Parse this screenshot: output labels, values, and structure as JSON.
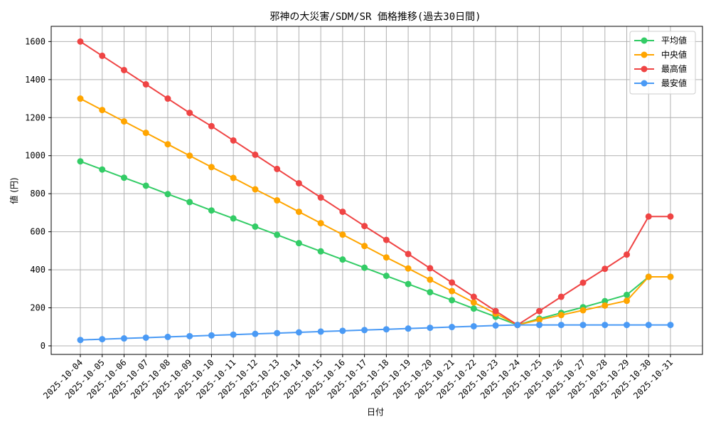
{
  "chart_data": {
    "type": "line",
    "title": "邪神の大災害/SDM/SR 価格推移(過去30日間)",
    "xlabel": "日付",
    "ylabel": "値 (円)",
    "ylim": [
      -45,
      1680
    ],
    "yticks": [
      0,
      200,
      400,
      600,
      800,
      1000,
      1200,
      1400,
      1600
    ],
    "grid": true,
    "legend_position": "top-right",
    "categories": [
      "2025-10-04",
      "2025-10-05",
      "2025-10-06",
      "2025-10-07",
      "2025-10-08",
      "2025-10-09",
      "2025-10-10",
      "2025-10-11",
      "2025-10-12",
      "2025-10-13",
      "2025-10-14",
      "2025-10-15",
      "2025-10-16",
      "2025-10-17",
      "2025-10-18",
      "2025-10-19",
      "2025-10-20",
      "2025-10-21",
      "2025-10-22",
      "2025-10-23",
      "2025-10-24",
      "2025-10-25",
      "2025-10-26",
      "2025-10-27",
      "2025-10-28",
      "2025-10-29",
      "2025-10-30",
      "2025-10-31"
    ],
    "series": [
      {
        "name": "平均値",
        "color": "#33cc66",
        "values": [
          970,
          927,
          884,
          842,
          798,
          756,
          712,
          670,
          627,
          584,
          540,
          497,
          454,
          411,
          368,
          325,
          282,
          240,
          196,
          153,
          110,
          143,
          173,
          203,
          235,
          268,
          363,
          363
        ]
      },
      {
        "name": "中央値",
        "color": "#ffa500",
        "values": [
          1300,
          1240,
          1180,
          1120,
          1060,
          1000,
          940,
          883,
          823,
          765,
          705,
          645,
          585,
          525,
          465,
          407,
          348,
          288,
          228,
          170,
          110,
          137,
          162,
          187,
          212,
          237,
          363,
          363
        ]
      },
      {
        "name": "最高値",
        "color": "#ef4444",
        "values": [
          1600,
          1525,
          1450,
          1375,
          1300,
          1225,
          1155,
          1080,
          1005,
          930,
          855,
          780,
          705,
          630,
          557,
          483,
          408,
          333,
          258,
          183,
          110,
          183,
          258,
          332,
          405,
          480,
          680,
          680
        ]
      },
      {
        "name": "最安値",
        "color": "#4a9af5",
        "values": [
          31,
          35,
          39,
          43,
          47,
          51,
          55,
          59,
          63,
          67,
          71,
          75,
          79,
          83,
          87,
          91,
          95,
          99,
          103,
          107,
          110,
          110,
          110,
          110,
          110,
          110,
          110,
          110
        ]
      }
    ]
  }
}
